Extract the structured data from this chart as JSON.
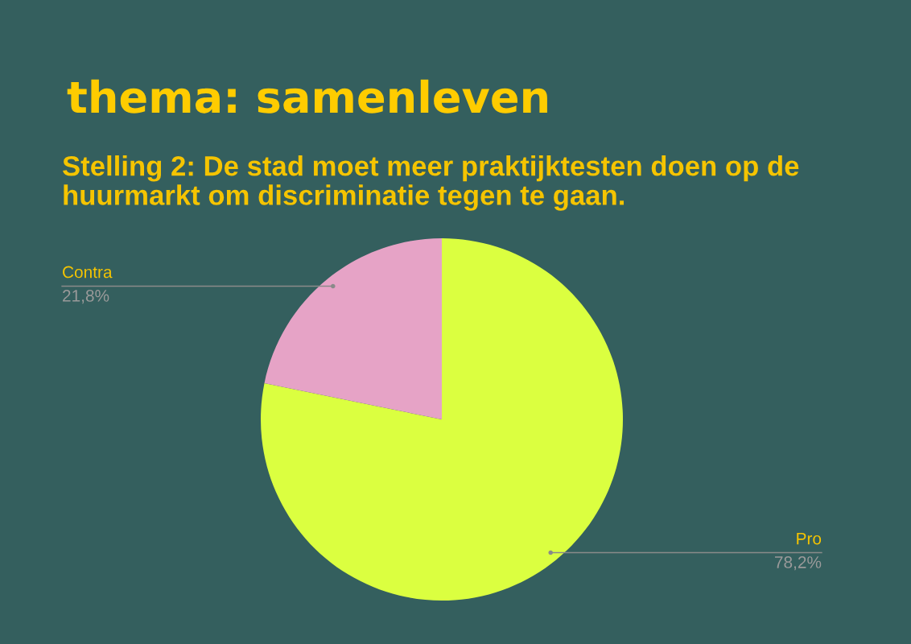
{
  "chart_data": {
    "type": "pie",
    "title": "thema: samenleven",
    "subtitle": "Stelling 2: De stad moet meer praktijktesten doen op de huurmarkt om discriminatie tegen te gaan.",
    "categories": [
      "Pro",
      "Contra"
    ],
    "values": [
      78.2,
      21.8
    ],
    "value_labels": [
      "78,2%",
      "21,8%"
    ],
    "colors": [
      "#dbff40",
      "#e6a3c6"
    ]
  }
}
